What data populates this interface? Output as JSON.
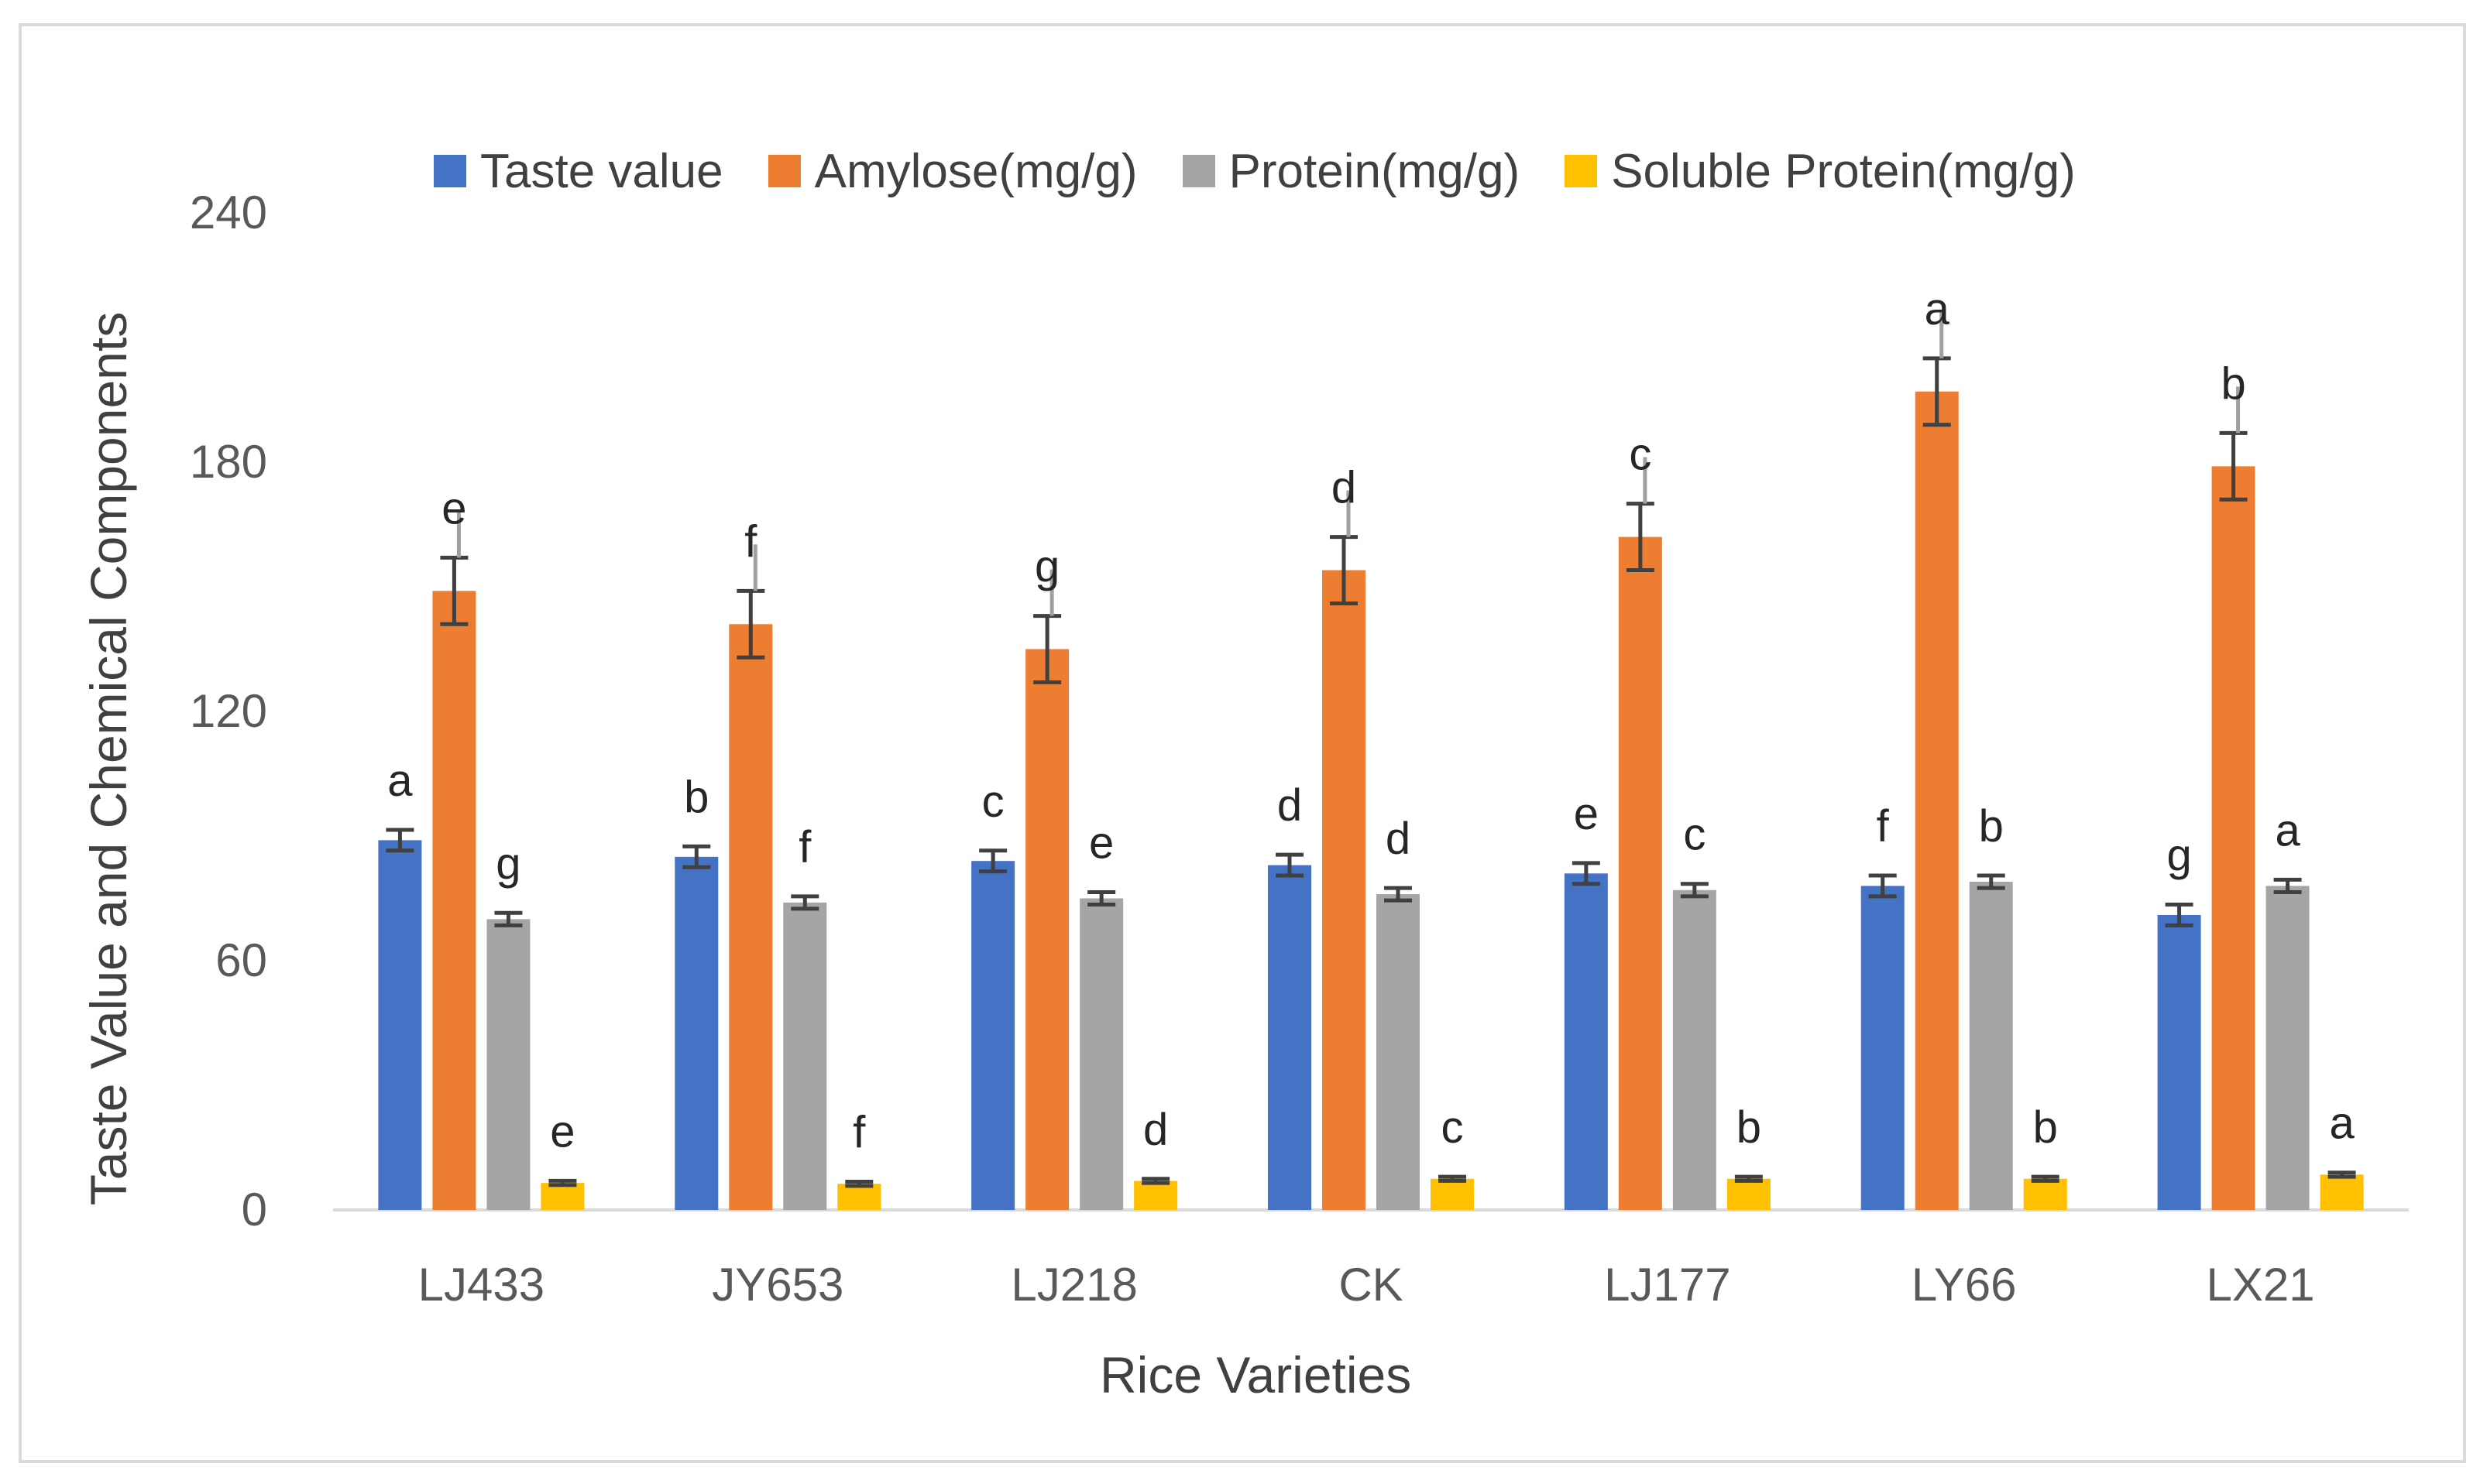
{
  "chart_data": {
    "type": "bar",
    "title": "",
    "xlabel": "Rice Varieties",
    "ylabel": "Taste Value and Chemical Components",
    "ylim": [
      0,
      240
    ],
    "yticks": [
      "0",
      "60",
      "120",
      "180",
      "240"
    ],
    "categories": [
      "LJ433",
      "JY653",
      "LJ218",
      "CK",
      "LJ177",
      "LY66",
      "LX21"
    ],
    "legend_position": "top",
    "series": [
      {
        "name": "Taste value",
        "color": "#4472C4",
        "values": [
          89,
          85,
          84,
          83,
          81,
          78,
          71
        ],
        "errors": [
          2.5,
          2.5,
          2.5,
          2.5,
          2.5,
          2.5,
          2.5
        ],
        "labels": [
          "a",
          "b",
          "c",
          "d",
          "e",
          "f",
          "g"
        ]
      },
      {
        "name": "Amylose(mg/g)",
        "color": "#ED7D31",
        "values": [
          149,
          141,
          135,
          154,
          162,
          197,
          179
        ],
        "errors": [
          8,
          8,
          8,
          8,
          8,
          8,
          8
        ],
        "labels": [
          "e",
          "f",
          "g",
          "d",
          "c",
          "a",
          "b"
        ]
      },
      {
        "name": "Protein(mg/g)",
        "color": "#A5A5A5",
        "values": [
          70,
          74,
          75,
          76,
          77,
          79,
          78
        ],
        "errors": [
          1.5,
          1.5,
          1.5,
          1.5,
          1.5,
          1.5,
          1.5
        ],
        "labels": [
          "g",
          "f",
          "e",
          "d",
          "c",
          "b",
          "a"
        ]
      },
      {
        "name": "Soluble Protein(mg/g)",
        "color": "#FFC000",
        "values": [
          6.5,
          6.3,
          7.0,
          7.5,
          7.5,
          7.5,
          8.5
        ],
        "errors": [
          0.5,
          0.5,
          0.5,
          0.5,
          0.5,
          0.5,
          0.5
        ],
        "labels": [
          "e",
          "f",
          "d",
          "c",
          "b",
          "b",
          "a"
        ]
      }
    ]
  }
}
